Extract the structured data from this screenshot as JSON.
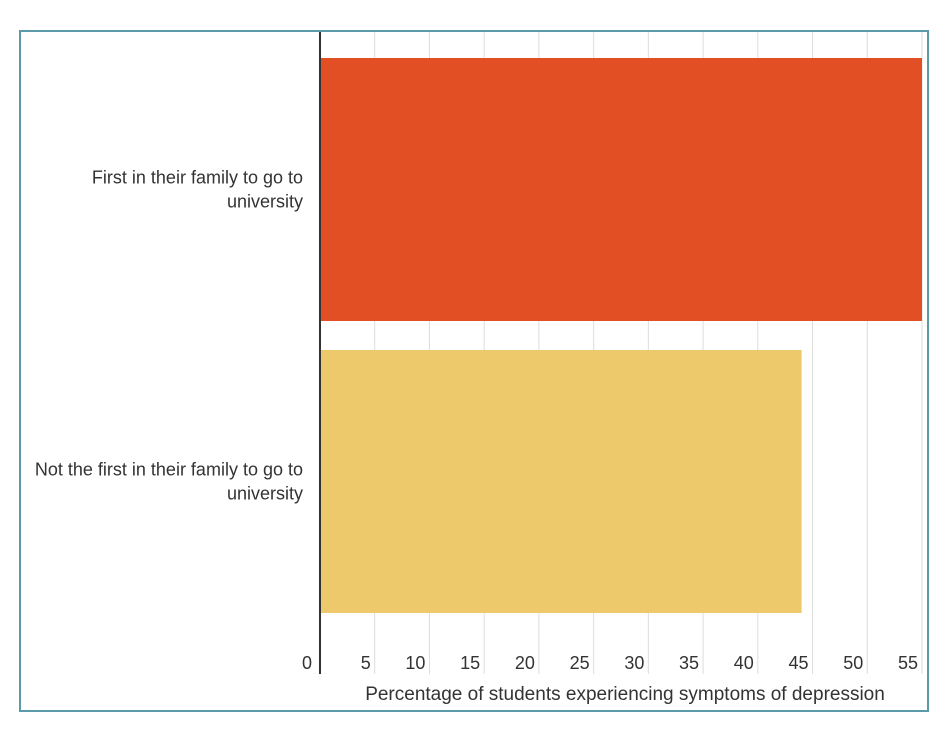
{
  "chart_data": {
    "type": "bar",
    "orientation": "horizontal",
    "categories": [
      "First in their family to go to university",
      "Not the first in their family to go to university"
    ],
    "values": [
      55,
      44
    ],
    "colors": [
      "#e34f24",
      "#eec96b"
    ],
    "xlabel": "Percentage of students experiencing symptoms of depression",
    "ylabel": "",
    "xlim": [
      0,
      55
    ],
    "xticks": [
      0,
      5,
      10,
      15,
      20,
      25,
      30,
      35,
      40,
      45,
      50,
      55
    ],
    "grid": true,
    "legend": "none"
  },
  "colors": {
    "frame_border": "#5b9aa9",
    "gridline": "#dddddd",
    "axis_line": "#333333",
    "text": "#333333"
  }
}
